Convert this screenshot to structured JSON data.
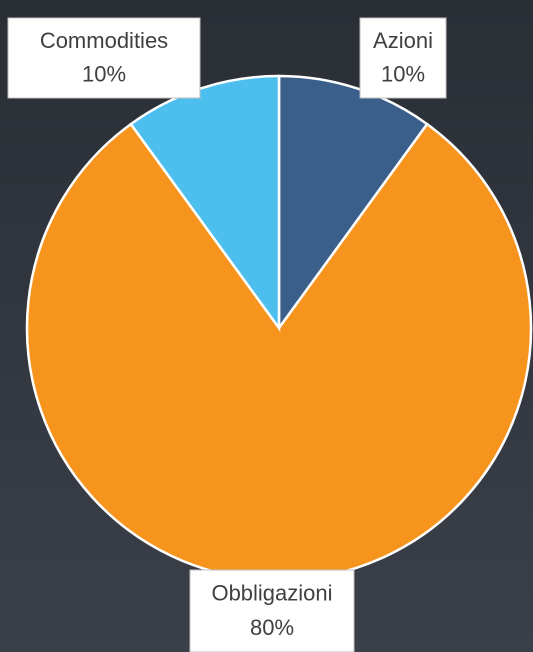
{
  "chart_data": {
    "type": "pie",
    "categories": [
      "Azioni",
      "Obbligazioni",
      "Commodities"
    ],
    "values": [
      10,
      80,
      10
    ],
    "value_labels": [
      "10%",
      "80%",
      "10%"
    ],
    "colors": [
      "#3a5f8a",
      "#f7941d",
      "#4dbfef"
    ]
  }
}
